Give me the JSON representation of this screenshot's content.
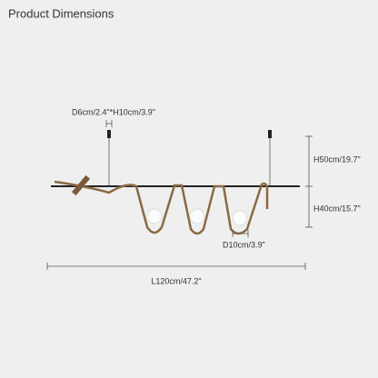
{
  "header": {
    "title": "Product Dimensions"
  },
  "dimensions": {
    "canopy": "D6cm/2.4\"*H10cm/3.9\"",
    "upper_height": "H50cm/19.7\"",
    "lower_height": "H40cm/15.7\"",
    "shade": "D10cm/3.9\"",
    "length": "L120cm/47.2\""
  }
}
